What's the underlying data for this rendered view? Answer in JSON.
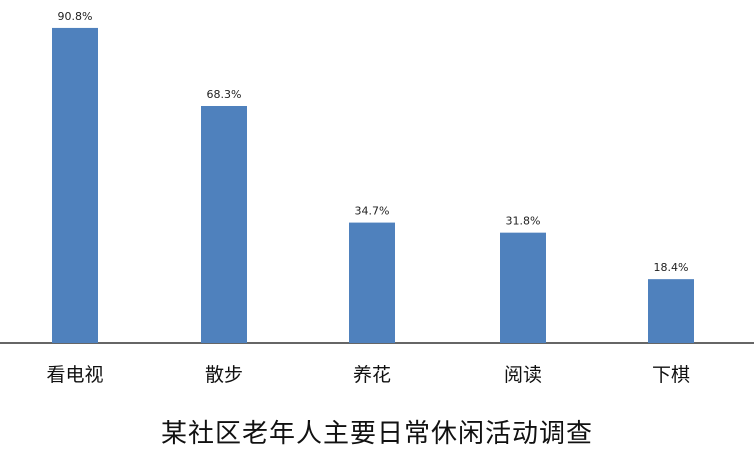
{
  "chart_data": {
    "type": "bar",
    "title": "某社区老年人主要日常休闲活动调查",
    "categories": [
      "看电视",
      "散步",
      "养花",
      "阅读",
      "下棋"
    ],
    "values": [
      90.8,
      68.3,
      34.7,
      31.8,
      18.4
    ],
    "data_labels": [
      "90.8%",
      "68.3%",
      "34.7%",
      "31.8%",
      "18.4%"
    ],
    "unit": "%",
    "xlabel": "",
    "ylabel": "",
    "ylim": [
      0,
      100
    ],
    "grid": false,
    "y_axis_visible": false,
    "bar_color": "#4f81bd"
  }
}
